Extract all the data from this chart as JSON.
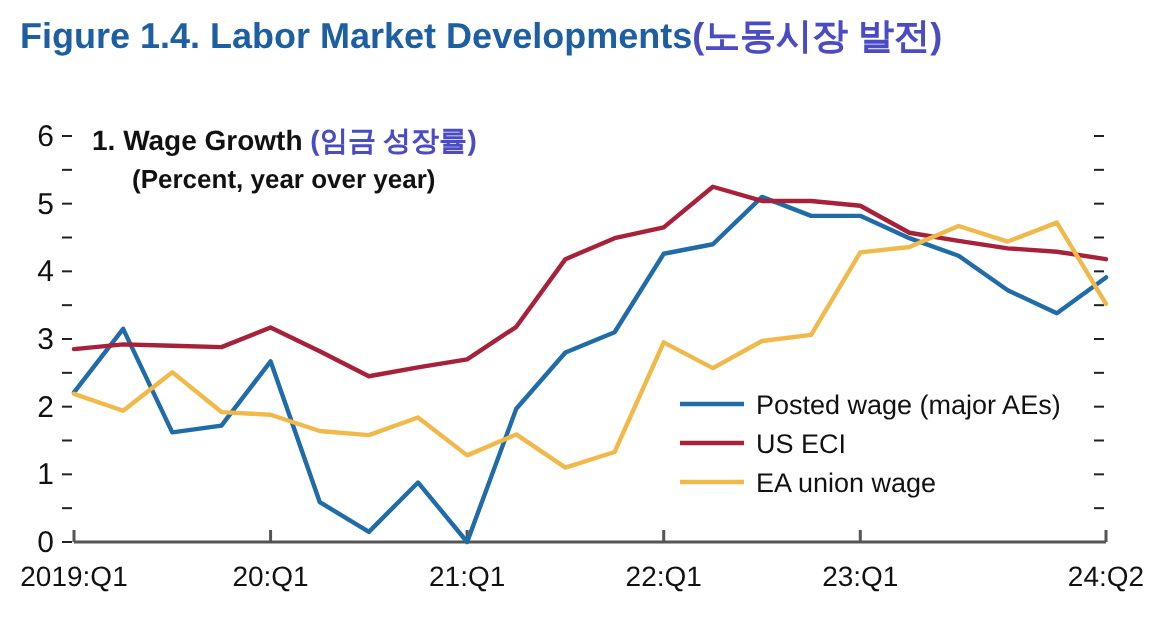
{
  "chart_data": {
    "type": "line",
    "title": "Figure 1.4.  Labor Market Developments(노동시장 발전)",
    "subtitle": "1. Wage Growth (임금 성장률)",
    "ylabel": "(Percent, year over year)",
    "categories": [
      "2019:Q1",
      null,
      null,
      null,
      "20:Q1",
      null,
      null,
      null,
      "21:Q1",
      null,
      null,
      null,
      "22:Q1",
      null,
      null,
      null,
      "23:Q1",
      null,
      null,
      null,
      null,
      "24:Q2"
    ],
    "series": [
      {
        "name": "Posted wage (major AEs)",
        "color": "#1f6ca8",
        "values": [
          2.21,
          3.15,
          1.62,
          1.72,
          2.67,
          0.59,
          0.15,
          0.88,
          0.0,
          1.97,
          2.8,
          3.1,
          4.26,
          4.4,
          5.1,
          4.82,
          4.82,
          4.49,
          4.23,
          3.72,
          3.38,
          3.91
        ]
      },
      {
        "name": "US ECI",
        "color": "#a8213a",
        "values": [
          2.85,
          2.92,
          2.9,
          2.88,
          3.17,
          2.82,
          2.45,
          2.58,
          2.7,
          3.18,
          4.18,
          4.49,
          4.65,
          5.25,
          5.04,
          5.04,
          4.97,
          4.57,
          4.45,
          4.34,
          4.29,
          4.18
        ]
      },
      {
        "name": "EA union wage",
        "color": "#f0b94a",
        "values": [
          2.19,
          1.94,
          2.51,
          1.92,
          1.88,
          1.64,
          1.58,
          1.84,
          1.28,
          1.59,
          1.1,
          1.33,
          2.95,
          2.57,
          2.97,
          3.06,
          4.28,
          4.36,
          4.67,
          4.44,
          4.72,
          3.52
        ]
      }
    ],
    "ylim": [
      0,
      6
    ],
    "yticks": [
      0,
      {
        "value": 0.5,
        "label": null
      },
      1,
      {
        "value": 1.5,
        "label": null
      },
      2,
      {
        "value": 2.5,
        "label": null
      },
      3,
      {
        "value": 3.5,
        "label": null
      },
      4,
      {
        "value": 4.5,
        "label": null
      },
      5,
      {
        "value": 5.5,
        "label": null
      },
      6
    ],
    "legend": "bottom right",
    "marker": "none",
    "line_style": "solid"
  }
}
